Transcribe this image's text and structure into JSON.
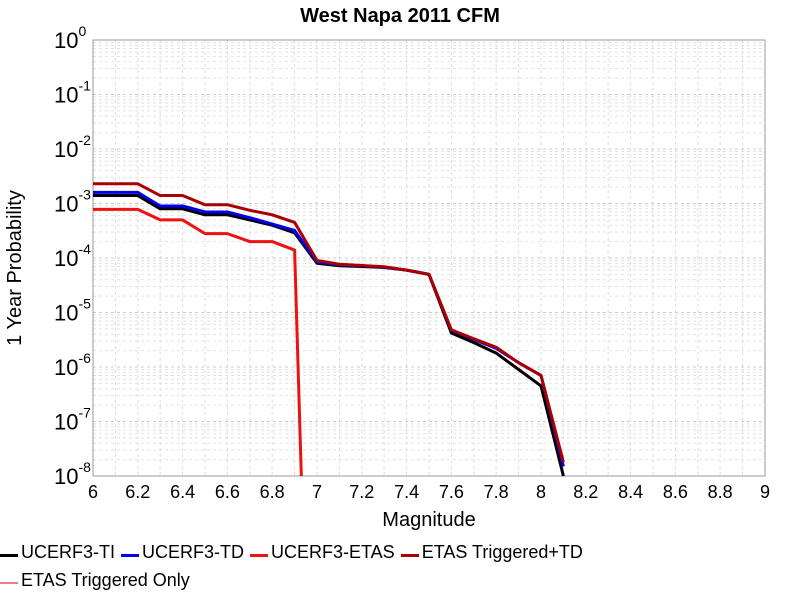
{
  "chart_data": {
    "type": "line",
    "title": "West Napa 2011 CFM",
    "xlabel": "Magnitude",
    "ylabel": "1 Year Probability",
    "xlim": [
      6,
      9
    ],
    "ylim": [
      1e-08,
      1
    ],
    "yscale": "log",
    "grid": true,
    "x_ticks": [
      "6",
      "6.2",
      "6.4",
      "6.6",
      "6.8",
      "7",
      "7.2",
      "7.4",
      "7.6",
      "7.8",
      "8",
      "8.2",
      "8.4",
      "8.6",
      "8.8",
      "9"
    ],
    "y_ticks": [
      {
        "base": "10",
        "exp": "0"
      },
      {
        "base": "10",
        "exp": "-1"
      },
      {
        "base": "10",
        "exp": "-2"
      },
      {
        "base": "10",
        "exp": "-3"
      },
      {
        "base": "10",
        "exp": "-4"
      },
      {
        "base": "10",
        "exp": "-5"
      },
      {
        "base": "10",
        "exp": "-6"
      },
      {
        "base": "10",
        "exp": "-7"
      },
      {
        "base": "10",
        "exp": "-8"
      }
    ],
    "legend_position": "bottom",
    "series": [
      {
        "name": "UCERF3-TI",
        "color": "#000000",
        "x": [
          6.0,
          6.2,
          6.3,
          6.4,
          6.5,
          6.6,
          6.7,
          6.8,
          6.9,
          7.0,
          7.1,
          7.2,
          7.3,
          7.4,
          7.5,
          7.6,
          7.7,
          7.8,
          7.9,
          8.0,
          8.1
        ],
        "y": [
          0.0014,
          0.0014,
          0.0008,
          0.0008,
          0.00062,
          0.00062,
          0.0005,
          0.0004,
          0.00029,
          8e-05,
          7.2e-05,
          7e-05,
          6.7e-05,
          6e-05,
          5e-05,
          4.2e-06,
          2.8e-06,
          1.8e-06,
          9e-07,
          4.5e-07,
          1e-08
        ]
      },
      {
        "name": "UCERF3-TD",
        "color": "#0000ee",
        "x": [
          6.0,
          6.2,
          6.3,
          6.4,
          6.5,
          6.6,
          6.7,
          6.8,
          6.9,
          7.0,
          7.1,
          7.2,
          7.3,
          7.4,
          7.5,
          7.6,
          7.7,
          7.8,
          7.9,
          8.0,
          8.1
        ],
        "y": [
          0.0016,
          0.0016,
          0.0009,
          0.0009,
          0.0007,
          0.0007,
          0.00055,
          0.00042,
          0.00032,
          8.5e-05,
          7.5e-05,
          7.2e-05,
          6.8e-05,
          6e-05,
          5e-05,
          4.7e-06,
          3.2e-06,
          2.2e-06,
          1.2e-06,
          7e-07,
          1.5e-08
        ]
      },
      {
        "name": "UCERF3-ETAS",
        "color": "#ee1111",
        "x": [
          6.0,
          6.2,
          6.3,
          6.4,
          6.5,
          6.6,
          6.7,
          6.8,
          6.9,
          6.93
        ],
        "y": [
          0.00078,
          0.00078,
          0.0005,
          0.0005,
          0.00028,
          0.00028,
          0.0002,
          0.0002,
          0.00014,
          1e-08
        ]
      },
      {
        "name": "ETAS Triggered+TD",
        "color": "#aa0000",
        "x": [
          6.0,
          6.2,
          6.3,
          6.4,
          6.5,
          6.6,
          6.7,
          6.8,
          6.9,
          7.0,
          7.1,
          7.2,
          7.3,
          7.4,
          7.5,
          7.6,
          7.7,
          7.8,
          7.9,
          8.0,
          8.1
        ],
        "y": [
          0.0023,
          0.0023,
          0.0014,
          0.0014,
          0.00095,
          0.00095,
          0.00075,
          0.00062,
          0.00045,
          9e-05,
          7.7e-05,
          7.3e-05,
          6.9e-05,
          6e-05,
          5e-05,
          4.8e-06,
          3.3e-06,
          2.3e-06,
          1.2e-06,
          7e-07,
          1.8e-08
        ]
      },
      {
        "name": "ETAS Triggered Only",
        "color": "#f08080",
        "x": [],
        "y": []
      }
    ]
  }
}
